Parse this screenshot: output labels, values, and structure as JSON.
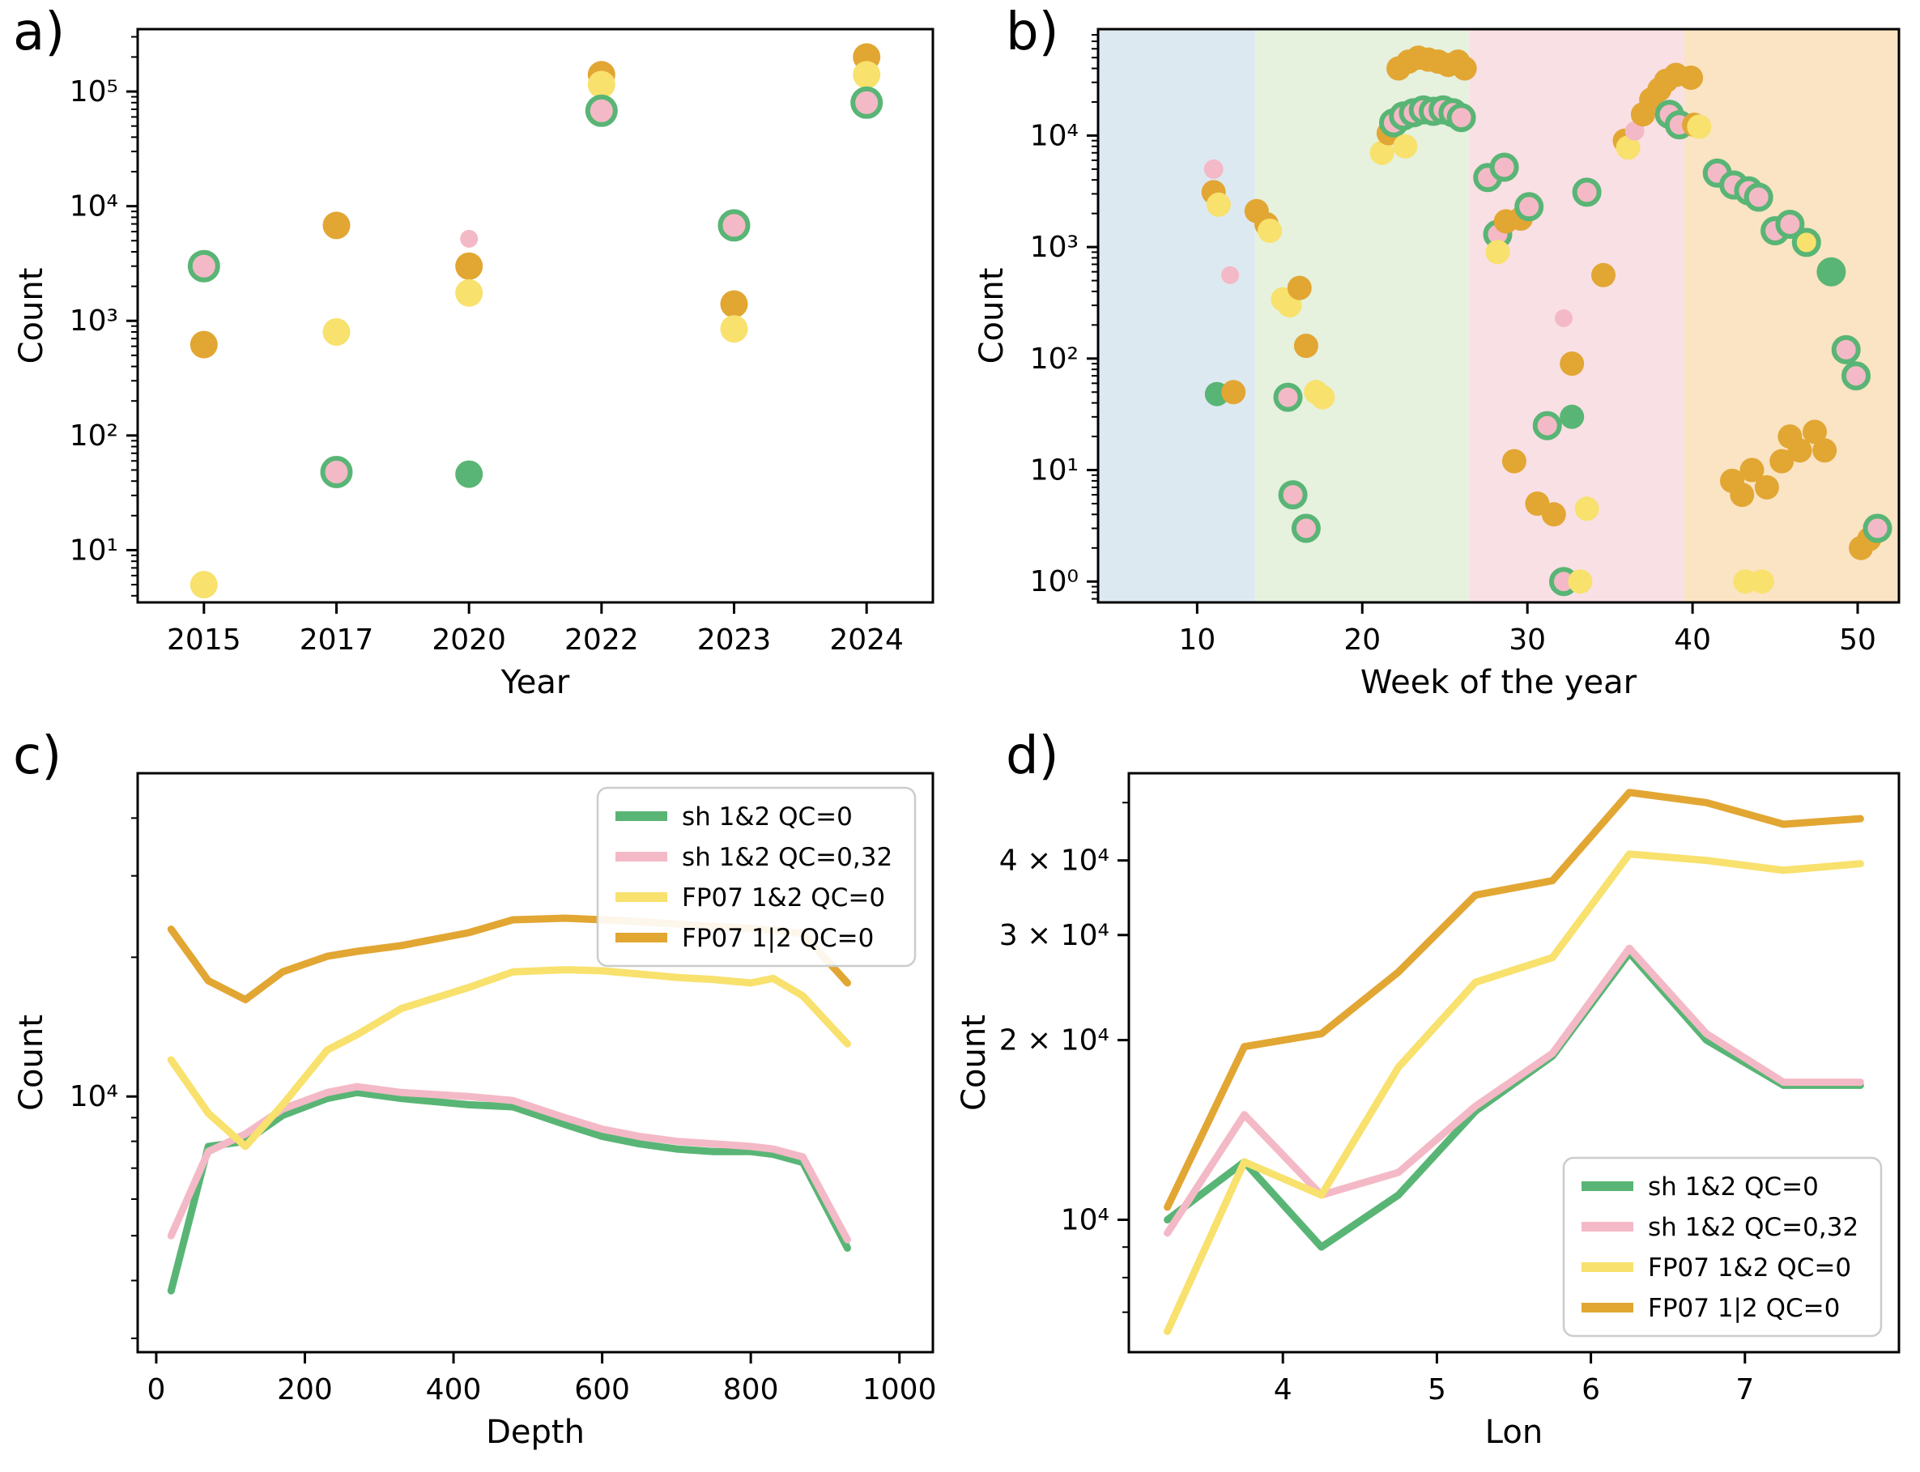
{
  "page": {
    "background": "#ffffff"
  },
  "colors": {
    "green": "#59b575",
    "pink": "#f4b9c6",
    "yellow": "#f8e16d",
    "orange": "#e2a633",
    "edge_green": "#59b575",
    "band_winter": "#dde9f1",
    "band_spring": "#e6f1de",
    "band_summer": "#f9e0e4",
    "band_autumn": "#fae4c3",
    "axis": "#000000",
    "legend_border": "#cccccc"
  },
  "chart_data": [
    {
      "id": "a",
      "panel_label": "a)",
      "type": "scatter",
      "xlabel": "Year",
      "ylabel": "Count",
      "categories": [
        "2015",
        "2017",
        "2020",
        "2022",
        "2023",
        "2024"
      ],
      "xlim": [
        -0.5,
        5.5
      ],
      "ylog": true,
      "ylim": [
        3.5,
        350000
      ],
      "yticks": [
        {
          "v": 10,
          "label": "10¹"
        },
        {
          "v": 100,
          "label": "10²"
        },
        {
          "v": 1000,
          "label": "10³"
        },
        {
          "v": 10000,
          "label": "10⁴"
        },
        {
          "v": 100000,
          "label": "10⁵"
        }
      ],
      "marker_r": 17,
      "points": [
        [
          0,
          3000,
          "pink",
          1
        ],
        [
          0,
          620,
          "orange",
          0
        ],
        [
          0,
          5,
          "yellow",
          0
        ],
        [
          1,
          6800,
          "orange",
          0
        ],
        [
          1,
          800,
          "yellow",
          0
        ],
        [
          1,
          48,
          "pink",
          1
        ],
        [
          2,
          5200,
          "pink",
          0,
          11
        ],
        [
          2,
          3000,
          "orange",
          0
        ],
        [
          2,
          1750,
          "yellow",
          0
        ],
        [
          2,
          46,
          "green",
          0
        ],
        [
          3,
          140000,
          "orange",
          0
        ],
        [
          3,
          115000,
          "yellow",
          0
        ],
        [
          3,
          68000,
          "pink",
          1
        ],
        [
          4,
          6800,
          "pink",
          1
        ],
        [
          4,
          1400,
          "orange",
          0
        ],
        [
          4,
          850,
          "yellow",
          0
        ],
        [
          5,
          200000,
          "orange",
          0
        ],
        [
          5,
          140000,
          "yellow",
          0
        ],
        [
          5,
          80000,
          "pink",
          1
        ]
      ]
    },
    {
      "id": "b",
      "panel_label": "b)",
      "type": "scatter",
      "xlabel": "Week of the year",
      "ylabel": "Count",
      "xlim": [
        4,
        52.5
      ],
      "xticks": [
        {
          "v": 10,
          "label": "10"
        },
        {
          "v": 20,
          "label": "20"
        },
        {
          "v": 30,
          "label": "30"
        },
        {
          "v": 40,
          "label": "40"
        },
        {
          "v": 50,
          "label": "50"
        }
      ],
      "ylog": true,
      "ylim": [
        0.65,
        90000
      ],
      "yticks": [
        {
          "v": 1,
          "label": "10⁰"
        },
        {
          "v": 10,
          "label": "10¹"
        },
        {
          "v": 100,
          "label": "10²"
        },
        {
          "v": 1000,
          "label": "10³"
        },
        {
          "v": 10000,
          "label": "10⁴"
        }
      ],
      "bands": [
        {
          "x0": 4,
          "x1": 13.5,
          "color": "band_winter"
        },
        {
          "x0": 13.5,
          "x1": 26.5,
          "color": "band_spring"
        },
        {
          "x0": 26.5,
          "x1": 39.5,
          "color": "band_summer"
        },
        {
          "x0": 39.5,
          "x1": 52.5,
          "color": "band_autumn"
        }
      ],
      "marker_r": 15,
      "points": [
        [
          11,
          5000,
          "pink",
          0,
          12
        ],
        [
          11,
          3100,
          "orange",
          0
        ],
        [
          11.3,
          2400,
          "yellow",
          0
        ],
        [
          12,
          560,
          "pink",
          0,
          11
        ],
        [
          11.2,
          48,
          "green",
          0
        ],
        [
          12.2,
          50,
          "orange",
          0
        ],
        [
          13.6,
          2100,
          "orange",
          0
        ],
        [
          14.2,
          1600,
          "orange",
          0
        ],
        [
          14.4,
          1400,
          "yellow",
          0
        ],
        [
          15.2,
          340,
          "yellow",
          0
        ],
        [
          15.6,
          300,
          "yellow",
          0
        ],
        [
          16.2,
          430,
          "orange",
          0
        ],
        [
          15.5,
          45,
          "pink",
          1
        ],
        [
          16.6,
          130,
          "orange",
          0
        ],
        [
          17.2,
          50,
          "yellow",
          0
        ],
        [
          17.6,
          45,
          "yellow",
          0
        ],
        [
          15.8,
          6,
          "pink",
          1
        ],
        [
          16.6,
          3,
          "pink",
          1
        ],
        [
          21.2,
          7000,
          "yellow",
          0
        ],
        [
          21.6,
          10500,
          "orange",
          0
        ],
        [
          21.9,
          13000,
          "pink",
          1
        ],
        [
          22.2,
          40000,
          "orange",
          0
        ],
        [
          22.8,
          46000,
          "orange",
          0
        ],
        [
          23.4,
          50000,
          "orange",
          0
        ],
        [
          24,
          48000,
          "orange",
          0
        ],
        [
          24.6,
          46000,
          "orange",
          0
        ],
        [
          25.2,
          43000,
          "orange",
          0
        ],
        [
          25.8,
          46000,
          "orange",
          0
        ],
        [
          26.2,
          40000,
          "orange",
          0
        ],
        [
          22.5,
          15000,
          "pink",
          1
        ],
        [
          23.1,
          16000,
          "pink",
          1
        ],
        [
          23.7,
          17000,
          "pink",
          1
        ],
        [
          24.3,
          16500,
          "pink",
          1
        ],
        [
          24.9,
          17000,
          "pink",
          1
        ],
        [
          25.5,
          16000,
          "pink",
          1
        ],
        [
          26,
          14500,
          "pink",
          1
        ],
        [
          22.6,
          8000,
          "yellow",
          0
        ],
        [
          27.6,
          4200,
          "pink",
          1
        ],
        [
          28.6,
          5200,
          "pink",
          1
        ],
        [
          28.2,
          1300,
          "pink",
          1
        ],
        [
          28.7,
          1700,
          "orange",
          0
        ],
        [
          28.2,
          900,
          "yellow",
          0
        ],
        [
          29.6,
          1800,
          "orange",
          0
        ],
        [
          30.1,
          2300,
          "pink",
          1
        ],
        [
          29.2,
          12,
          "orange",
          0
        ],
        [
          30.6,
          5,
          "orange",
          0
        ],
        [
          31.2,
          25,
          "pink",
          1
        ],
        [
          31.6,
          4,
          "orange",
          0
        ],
        [
          32.2,
          230,
          "pink",
          0,
          11
        ],
        [
          32.7,
          30,
          "green",
          0
        ],
        [
          32.7,
          90,
          "orange",
          0
        ],
        [
          32.2,
          1,
          "pink",
          1
        ],
        [
          33.2,
          1,
          "yellow",
          0
        ],
        [
          33.6,
          3100,
          "pink",
          1
        ],
        [
          33.6,
          4.5,
          "yellow",
          0
        ],
        [
          34.6,
          560,
          "orange",
          0
        ],
        [
          35.9,
          9000,
          "orange",
          0
        ],
        [
          36.1,
          7800,
          "yellow",
          0
        ],
        [
          36.5,
          11000,
          "pink",
          0,
          12
        ],
        [
          37,
          15500,
          "orange",
          0
        ],
        [
          37.5,
          21000,
          "orange",
          0
        ],
        [
          38,
          26000,
          "orange",
          0
        ],
        [
          38.4,
          31000,
          "orange",
          0
        ],
        [
          38.6,
          15500,
          "pink",
          1
        ],
        [
          39,
          35000,
          "orange",
          0
        ],
        [
          39.2,
          12500,
          "pink",
          1
        ],
        [
          39.9,
          33000,
          "orange",
          0
        ],
        [
          40.1,
          12500,
          "orange",
          0
        ],
        [
          40.4,
          12000,
          "yellow",
          0
        ],
        [
          41.5,
          4600,
          "pink",
          1
        ],
        [
          42.5,
          3600,
          "pink",
          1
        ],
        [
          43.4,
          3200,
          "pink",
          1
        ],
        [
          44,
          2800,
          "pink",
          1
        ],
        [
          45,
          1400,
          "pink",
          1
        ],
        [
          45.9,
          1600,
          "pink",
          1
        ],
        [
          46.9,
          1100,
          "yellow",
          1
        ],
        [
          48.4,
          600,
          "green",
          1
        ],
        [
          49.3,
          120,
          "pink",
          1
        ],
        [
          49.9,
          70,
          "pink",
          1
        ],
        [
          42.4,
          8,
          "orange",
          0
        ],
        [
          43,
          6,
          "orange",
          0
        ],
        [
          43.6,
          10,
          "orange",
          0
        ],
        [
          44.5,
          7,
          "orange",
          0
        ],
        [
          45.4,
          12,
          "orange",
          0
        ],
        [
          45.9,
          20,
          "orange",
          0
        ],
        [
          46.5,
          15,
          "orange",
          0
        ],
        [
          47.4,
          22,
          "orange",
          0
        ],
        [
          48,
          15,
          "orange",
          0
        ],
        [
          43.2,
          1,
          "yellow",
          0
        ],
        [
          44.2,
          1,
          "yellow",
          0
        ],
        [
          50.2,
          2,
          "orange",
          0
        ],
        [
          50.7,
          2.4,
          "orange",
          0
        ],
        [
          51.2,
          3,
          "pink",
          1
        ]
      ]
    },
    {
      "id": "c",
      "panel_label": "c)",
      "type": "line",
      "xlabel": "Depth",
      "ylabel": "Count",
      "xlim": [
        -25,
        1045
      ],
      "xticks": [
        {
          "v": 0,
          "label": "0"
        },
        {
          "v": 200,
          "label": "200"
        },
        {
          "v": 400,
          "label": "400"
        },
        {
          "v": 600,
          "label": "600"
        },
        {
          "v": 800,
          "label": "800"
        },
        {
          "v": 1000,
          "label": "1000"
        }
      ],
      "ylog": true,
      "ylim": [
        2800,
        50000
      ],
      "yticks": [
        {
          "v": 10000,
          "label": "10⁴"
        }
      ],
      "legend": "tr",
      "x": [
        20,
        70,
        120,
        170,
        230,
        270,
        330,
        420,
        480,
        550,
        600,
        650,
        700,
        750,
        800,
        830,
        870,
        930
      ],
      "series": [
        {
          "name": "sh 1&2 QC=0",
          "color": "green",
          "y": [
            3800,
            7800,
            8000,
            9100,
            9900,
            10200,
            9900,
            9600,
            9500,
            8700,
            8200,
            7900,
            7700,
            7600,
            7600,
            7500,
            7200,
            4700
          ]
        },
        {
          "name": "sh 1&2 QC=0,32",
          "color": "pink",
          "y": [
            5000,
            7600,
            8300,
            9400,
            10200,
            10500,
            10200,
            10000,
            9800,
            9000,
            8500,
            8200,
            8000,
            7900,
            7800,
            7700,
            7400,
            4900
          ]
        },
        {
          "name": "FP07 1&2 QC=0",
          "color": "yellow",
          "y": [
            12000,
            9200,
            7800,
            9600,
            12600,
            13600,
            15500,
            17200,
            18600,
            18800,
            18700,
            18400,
            18100,
            17900,
            17600,
            18000,
            16500,
            13000
          ]
        },
        {
          "name": "FP07 1|2 QC=0",
          "color": "orange",
          "y": [
            23000,
            17800,
            16200,
            18600,
            20100,
            20600,
            21200,
            22600,
            24100,
            24300,
            24100,
            23900,
            23600,
            23300,
            23100,
            22900,
            22500,
            17600
          ]
        }
      ]
    },
    {
      "id": "d",
      "panel_label": "d)",
      "type": "line",
      "xlabel": "Lon",
      "ylabel": "Count",
      "xlim": [
        3.0,
        8.0
      ],
      "xticks": [
        {
          "v": 4,
          "label": "4"
        },
        {
          "v": 5,
          "label": "5"
        },
        {
          "v": 6,
          "label": "6"
        },
        {
          "v": 7,
          "label": "7"
        }
      ],
      "ylog": true,
      "ylim": [
        6000,
        56000
      ],
      "yticks": [
        {
          "v": 10000,
          "label": "10⁴"
        },
        {
          "v": 20000,
          "label": "2 × 10⁴"
        },
        {
          "v": 30000,
          "label": "3 × 10⁴"
        },
        {
          "v": 40000,
          "label": "4 × 10⁴"
        }
      ],
      "legend": "br",
      "x": [
        3.25,
        3.75,
        4.25,
        4.75,
        5.25,
        5.75,
        6.25,
        6.75,
        7.25,
        7.75
      ],
      "series": [
        {
          "name": "sh 1&2 QC=0",
          "color": "green",
          "y": [
            10000,
            12500,
            9000,
            11000,
            15200,
            18800,
            28000,
            20000,
            16800,
            16800
          ]
        },
        {
          "name": "sh 1&2 QC=0,32",
          "color": "pink",
          "y": [
            9500,
            15000,
            11000,
            12000,
            15500,
            19000,
            28500,
            20500,
            17000,
            17000
          ]
        },
        {
          "name": "FP07 1&2 QC=0",
          "color": "yellow",
          "y": [
            6500,
            12500,
            11000,
            18000,
            25000,
            27500,
            41000,
            40000,
            38500,
            39500
          ]
        },
        {
          "name": "FP07 1|2 QC=0",
          "color": "orange",
          "y": [
            10500,
            19500,
            20500,
            26000,
            35000,
            37000,
            52000,
            50000,
            46000,
            47000
          ]
        }
      ]
    }
  ]
}
